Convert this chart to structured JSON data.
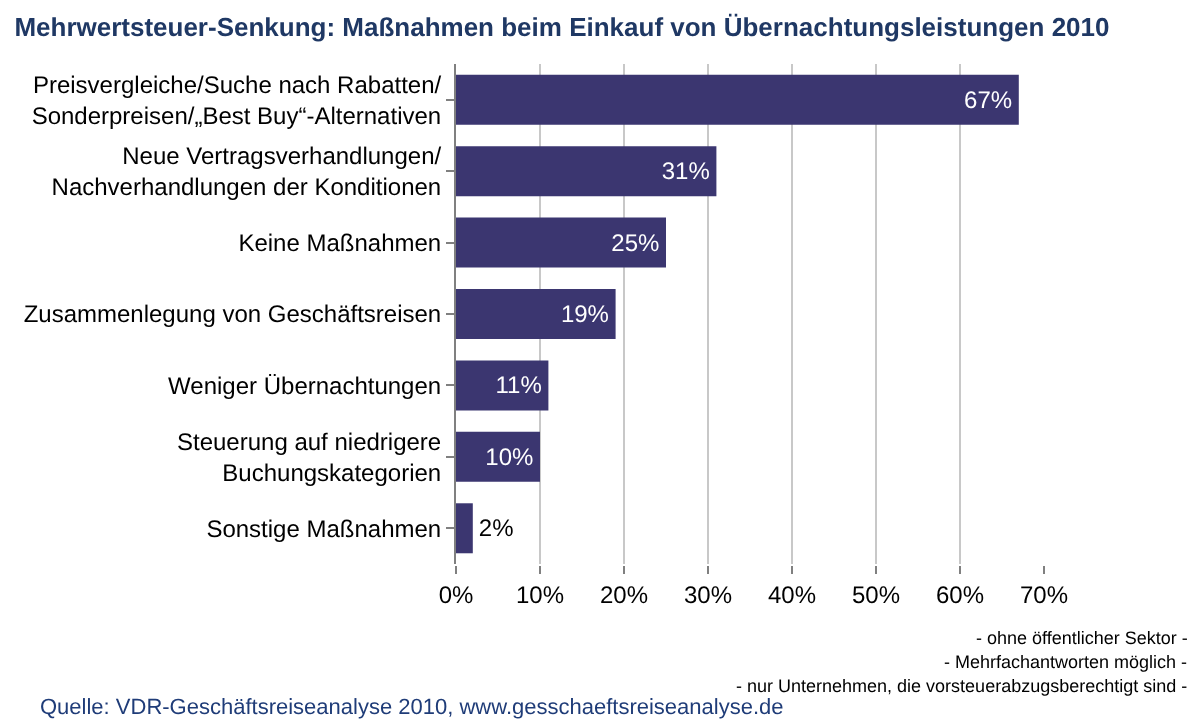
{
  "chart_data": {
    "type": "bar",
    "orientation": "horizontal",
    "title": "Mehrwertsteuer-Senkung: Maßnahmen beim Einkauf von Übernachtungsleistungen 2010",
    "categories": [
      "Preisvergleiche/Suche nach Rabatten/\nSonderpreisen/„Best Buy“-Alternativen",
      "Neue Vertragsverhandlungen/\nNachverhandlungen der Konditionen",
      "Keine Maßnahmen",
      "Zusammenlegung von Geschäftsreisen",
      "Weniger Übernachtungen",
      "Steuerung auf niedrigere\nBuchungskategorien",
      "Sonstige Maßnahmen"
    ],
    "values": [
      67,
      31,
      25,
      19,
      11,
      10,
      2
    ],
    "value_labels": [
      "67%",
      "31%",
      "25%",
      "19%",
      "11%",
      "10%",
      "2%"
    ],
    "color": "#3b3670",
    "xlim": [
      0,
      70
    ],
    "xticks": [
      {
        "value": 0,
        "label": "0%"
      },
      {
        "value": 10,
        "label": "10%"
      },
      {
        "value": 20,
        "label": "20%"
      },
      {
        "value": 30,
        "label": "30%"
      },
      {
        "value": 40,
        "label": "40%"
      },
      {
        "value": 50,
        "label": "50%"
      },
      {
        "value": 60,
        "label": "60%"
      },
      {
        "value": 70,
        "label": "70%"
      }
    ],
    "grid": "x",
    "legend": false,
    "annotations": [
      "- ohne öffentlicher Sektor -",
      "- Mehrfachantworten möglich -",
      "- nur Unternehmen, die vorsteuerabzugsberechtigt sind -",
      "Quelle: VDR-Geschäftsreiseanalyse 2010, www.gesschaeftsreiseanalyse.de"
    ]
  }
}
